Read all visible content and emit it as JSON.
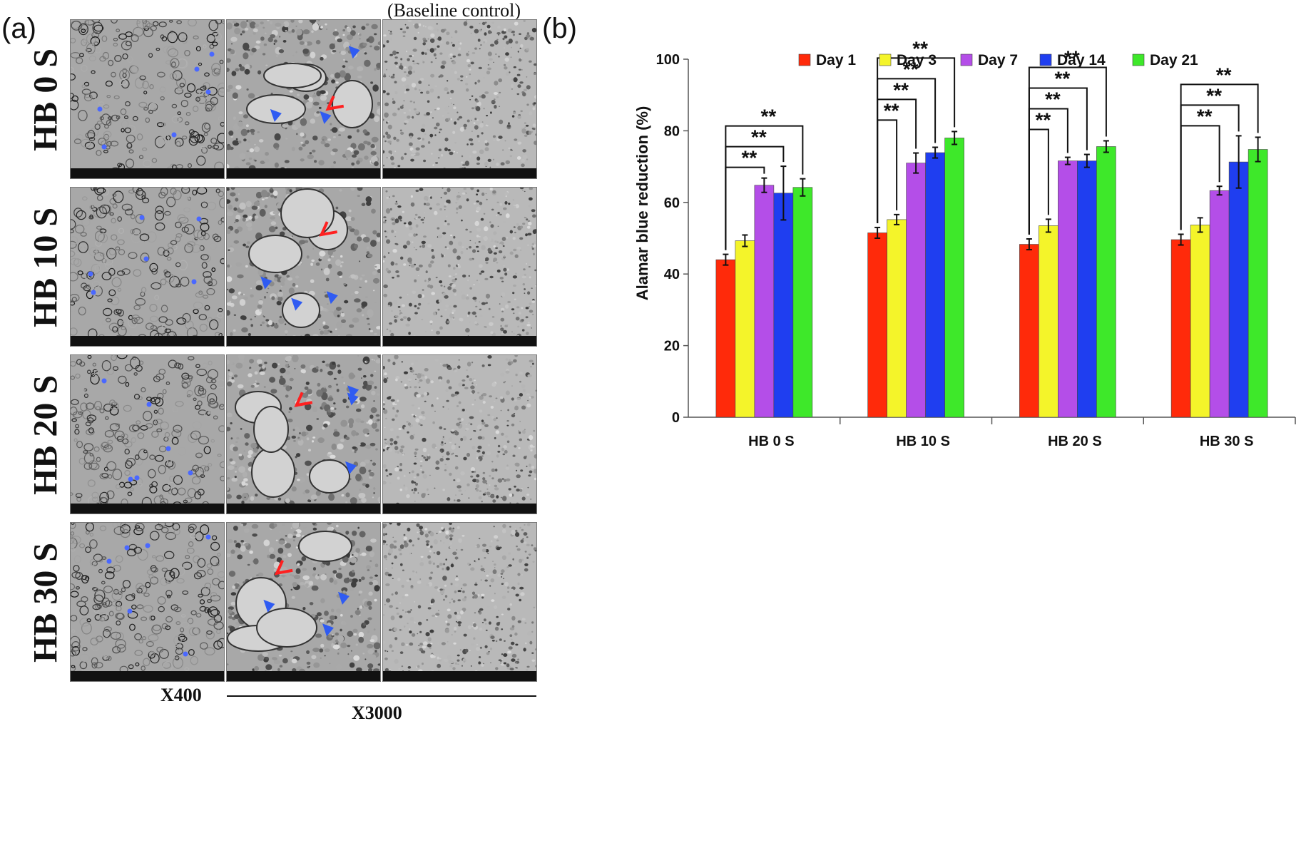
{
  "panel_a": {
    "letter": "(a)",
    "column_title": "(Baseline control)",
    "rows": [
      "HB 0 S",
      "HB 10 S",
      "HB 20 S",
      "HB 30 S"
    ],
    "magnifications": [
      "X400",
      "X3000"
    ]
  },
  "panel_b": {
    "letter": "(b)"
  },
  "chart_data": {
    "type": "bar",
    "categories": [
      "HB 0 S",
      "HB 10 S",
      "HB 20 S",
      "HB 30 S"
    ],
    "ylabel": "Alamar blue reduction (%)",
    "xlabel": "",
    "ylim": [
      0,
      100
    ],
    "yticks": [
      0,
      20,
      40,
      60,
      80,
      100
    ],
    "legend": "top",
    "series": [
      {
        "name": "Day 1",
        "color": "#ff2a0a",
        "values": [
          44.0,
          51.5,
          48.3,
          49.6
        ],
        "errors": [
          1.5,
          1.5,
          1.5,
          1.5
        ]
      },
      {
        "name": "Day 3",
        "color": "#f4f42a",
        "values": [
          49.3,
          55.2,
          53.5,
          53.7
        ],
        "errors": [
          1.6,
          1.4,
          1.8,
          2.0
        ]
      },
      {
        "name": "Day 7",
        "color": "#b44ee8",
        "values": [
          64.8,
          71.0,
          71.6,
          63.3
        ],
        "errors": [
          2.0,
          2.8,
          1.0,
          1.2
        ]
      },
      {
        "name": "Day 14",
        "color": "#1f3ef0",
        "values": [
          62.6,
          73.9,
          71.6,
          71.3
        ],
        "errors": [
          7.5,
          1.5,
          1.8,
          7.3
        ]
      },
      {
        "name": "Day 21",
        "color": "#3ee82a",
        "values": [
          64.2,
          78.0,
          75.6,
          74.8
        ],
        "errors": [
          2.4,
          1.8,
          1.6,
          3.4
        ]
      }
    ],
    "significance": {
      "label": "**",
      "comparisons": [
        {
          "category": 0,
          "from": 0,
          "to": 2
        },
        {
          "category": 0,
          "from": 0,
          "to": 3
        },
        {
          "category": 0,
          "from": 0,
          "to": 4
        },
        {
          "category": 1,
          "from": 0,
          "to": 1
        },
        {
          "category": 1,
          "from": 0,
          "to": 2
        },
        {
          "category": 1,
          "from": 0,
          "to": 3
        },
        {
          "category": 1,
          "from": 0,
          "to": 4
        },
        {
          "category": 2,
          "from": 0,
          "to": 1
        },
        {
          "category": 2,
          "from": 0,
          "to": 2
        },
        {
          "category": 2,
          "from": 0,
          "to": 3
        },
        {
          "category": 2,
          "from": 0,
          "to": 4
        },
        {
          "category": 3,
          "from": 0,
          "to": 2
        },
        {
          "category": 3,
          "from": 0,
          "to": 3
        },
        {
          "category": 3,
          "from": 0,
          "to": 4
        }
      ]
    }
  }
}
